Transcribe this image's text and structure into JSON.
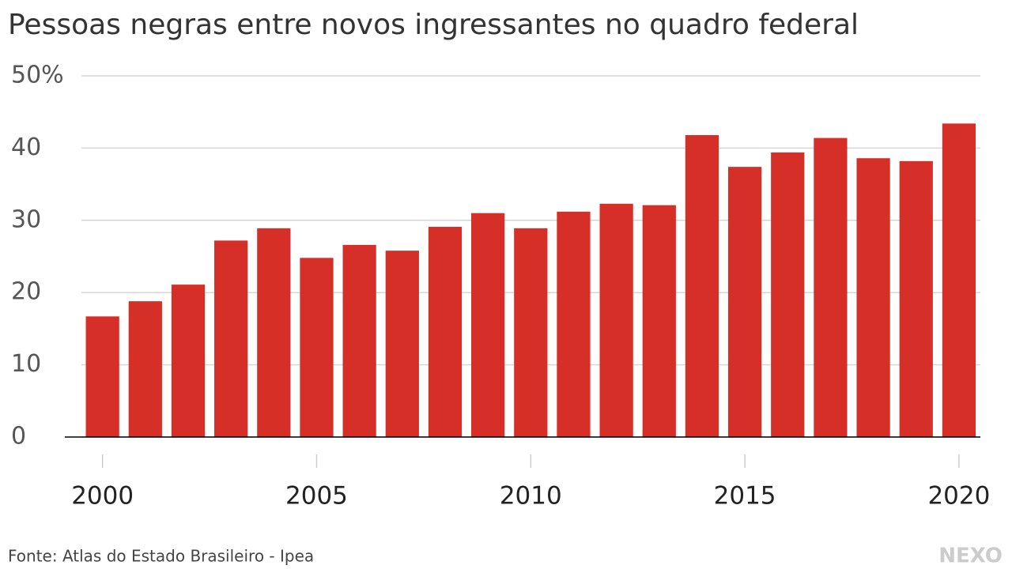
{
  "chart_data": {
    "type": "bar",
    "title": "Pessoas negras entre novos ingressantes no quadro federal",
    "x": [
      2000,
      2001,
      2002,
      2003,
      2004,
      2005,
      2006,
      2007,
      2008,
      2009,
      2010,
      2011,
      2012,
      2013,
      2014,
      2015,
      2016,
      2017,
      2018,
      2019,
      2020
    ],
    "values": [
      16.7,
      18.8,
      21.1,
      27.2,
      28.9,
      24.8,
      26.6,
      25.8,
      29.1,
      31.0,
      28.9,
      31.2,
      32.3,
      32.1,
      41.8,
      37.4,
      39.4,
      41.4,
      38.6,
      38.2,
      43.4
    ],
    "color": "#d62f27",
    "xlim": [
      1999.6,
      2020.5
    ],
    "xticks": [
      2000,
      2005,
      2010,
      2015,
      2020
    ],
    "ylim": [
      0,
      50
    ],
    "yticks": [
      0,
      10,
      20,
      30,
      40,
      {
        "value": 50,
        "label": "50%"
      }
    ],
    "grid": true,
    "source": "Fonte: Atlas do Estado Brasileiro - Ipea",
    "logo": "NEXO"
  }
}
